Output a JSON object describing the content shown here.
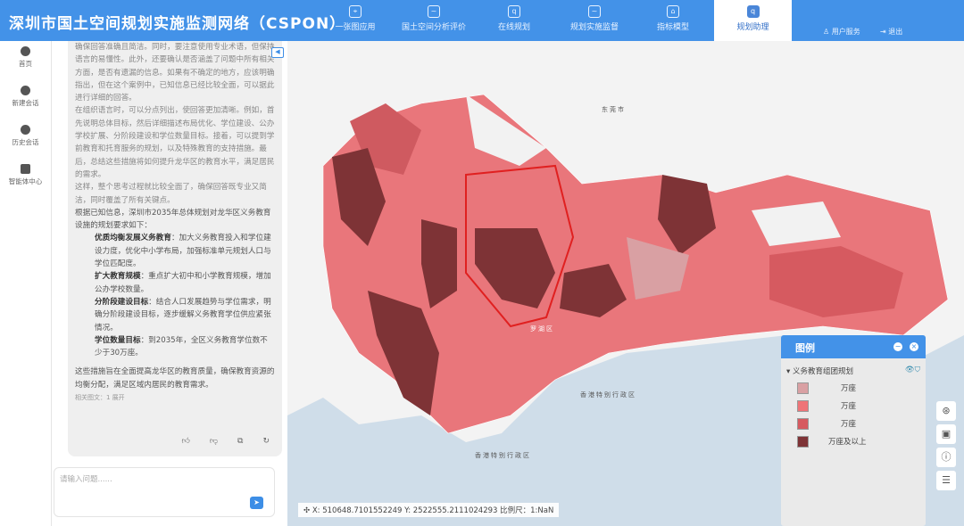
{
  "header": {
    "title": "深圳市国土空间规划实施监测网络（CSPON）",
    "nav": [
      {
        "label": "一张图应用",
        "icon": "map-pin-icon"
      },
      {
        "label": "国土空间分析评价",
        "icon": "chart-line-icon"
      },
      {
        "label": "在线规划",
        "icon": "search-icon"
      },
      {
        "label": "规划实施监督",
        "icon": "chart-line-icon"
      },
      {
        "label": "指标模型",
        "icon": "house-icon"
      },
      {
        "label": "规划助理",
        "icon": "search-icon",
        "active": true
      }
    ],
    "user_service": "用户服务",
    "logout": "退出"
  },
  "sidebar": {
    "items": [
      {
        "label": "首页",
        "icon": "home-icon"
      },
      {
        "label": "新建会话",
        "icon": "chat-icon"
      },
      {
        "label": "历史会话",
        "icon": "clock-icon"
      },
      {
        "label": "智能体中心",
        "icon": "robot-icon"
      }
    ]
  },
  "chat": {
    "thinking": [
      "确保回答准确且简洁。同时，要注意使用专业术语，但保持语言的易懂性。此外，还要确认是否涵盖了问题中所有相关方面，是否有遗漏的信息。如果有不确定的地方，应该明确指出，但在这个案例中，已知信息已经比较全面，可以据此进行详细的回答。",
      "在组织语言时，可以分点列出，使回答更加清晰。例如，首先说明总体目标，然后详细描述布局优化、学位建设、公办学校扩展、分阶段建设和学位数量目标。接着，可以提到学前教育和托育服务的规划，以及特殊教育的支持措施。最后，总结这些措施将如何提升龙华区的教育水平，满足居民的需求。",
      "这样，整个思考过程就比较全面了，确保回答既专业又简洁，同时覆盖了所有关键点。"
    ],
    "intro": "根据已知信息，深圳市2035年总体规划对龙华区义务教育设施的规划要求如下：",
    "items": [
      {
        "title": "优质均衡发展义务教育",
        "text": "：加大义务教育投入和学位建设力度，优化中小学布局，加强标准单元规划人口与学位匹配度。"
      },
      {
        "title": "扩大教育规模",
        "text": "：重点扩大初中和小学教育规模，增加公办学校数量。"
      },
      {
        "title": "分阶段建设目标",
        "text": "：结合人口发展趋势与学位需求，明确分阶段建设目标，逐步缓解义务教育学位供应紧张情况。"
      },
      {
        "title": "学位数量目标",
        "text": "：到2035年，全区义务教育学位数不少于30万座。"
      }
    ],
    "conclusion": "这些措施旨在全面提高龙华区的教育质量，确保教育资源的均衡分配，满足区域内居民的教育需求。",
    "related": "相关图文：1 展开",
    "input_placeholder": "请输入问题......"
  },
  "map": {
    "coords": "X: 510648.7101552249  Y: 2522555.2111024293  比例尺：1:NaN",
    "labels": [
      "东莞市",
      "香港特别行政区",
      "香港特别行政区",
      "罗湖区"
    ],
    "legend": {
      "title": "图例",
      "layer": "义务教育组团规划",
      "entries": [
        {
          "label": "万座",
          "color": "#d9a0a3"
        },
        {
          "label": "万座",
          "color": "#ee7478"
        },
        {
          "label": "万座",
          "color": "#d65a60"
        },
        {
          "label": "万座及以上",
          "color": "#7e3336"
        }
      ]
    }
  }
}
